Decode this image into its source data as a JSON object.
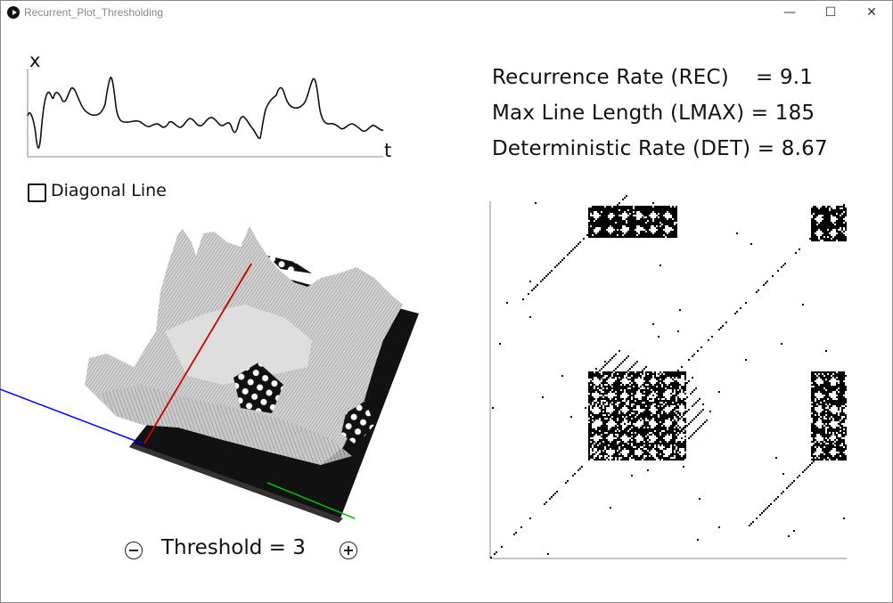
{
  "window": {
    "title": "Recurrent_Plot_Thresholding",
    "minimize_glyph": "—",
    "maximize_glyph": "☐",
    "close_glyph": "✕"
  },
  "time_series": {
    "y_axis_label": "x",
    "x_axis_label": "t"
  },
  "stats": {
    "rec": "Recurrence Rate (REC)    = 9.1",
    "lmax": "Max Line Length (LMAX) = 185",
    "det": "Deterministic Rate (DET) = 8.67"
  },
  "controls": {
    "diagonal_label": "Diagonal Line",
    "diagonal_checked": false,
    "threshold_text": "Threshold = 3",
    "threshold_value": 3
  },
  "surface": {
    "axis_colors": {
      "x": "#0000ff",
      "y": "#00c000",
      "z": "#ff0000"
    }
  },
  "recurrence_plot": {
    "size": 200
  }
}
